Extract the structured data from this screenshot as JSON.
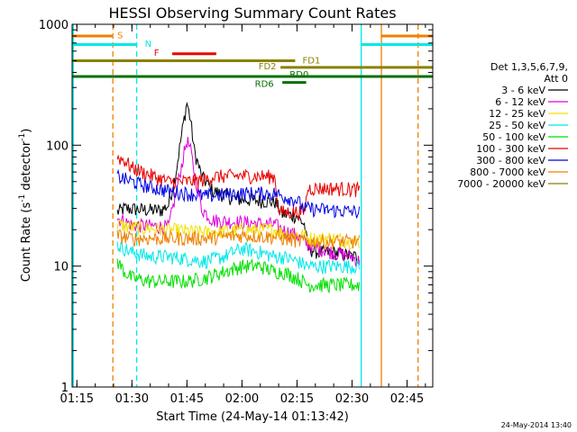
{
  "chart_data": {
    "type": "line",
    "title": "HESSI Observing Summary Count Rates",
    "xlabel": "Start Time (24-May-14 01:13:42)",
    "ylabel_parts": [
      "Count Rate (s",
      "-1",
      " detector",
      "-1",
      ")"
    ],
    "yscale": "log",
    "ylim": [
      1,
      1000
    ],
    "xlim_minutes": [
      73.7,
      172
    ],
    "x_ticks": [
      {
        "t": 75,
        "label": "01:15"
      },
      {
        "t": 90,
        "label": "01:30"
      },
      {
        "t": 105,
        "label": "01:45"
      },
      {
        "t": 120,
        "label": "02:00"
      },
      {
        "t": 135,
        "label": "02:15"
      },
      {
        "t": 150,
        "label": "02:30"
      },
      {
        "t": 165,
        "label": "02:45"
      }
    ],
    "y_ticks": [
      {
        "v": 1,
        "label": "1"
      },
      {
        "v": 10,
        "label": "10"
      },
      {
        "v": 100,
        "label": "100"
      },
      {
        "v": 1000,
        "label": "1000"
      }
    ],
    "legend_title": [
      "Det 1,3,5,6,7,9,",
      "Att 0"
    ],
    "legend_placement": "right",
    "series": [
      {
        "name": "3 - 6 keV",
        "color": "#000000",
        "points": [
          [
            86,
            28
          ],
          [
            88,
            30
          ],
          [
            95,
            29
          ],
          [
            98,
            29
          ],
          [
            100,
            32
          ],
          [
            102,
            60
          ],
          [
            104,
            150
          ],
          [
            105,
            225
          ],
          [
            106,
            160
          ],
          [
            107,
            90
          ],
          [
            109,
            55
          ],
          [
            112,
            42
          ],
          [
            118,
            36
          ],
          [
            124,
            35
          ],
          [
            129,
            34
          ],
          [
            131,
            27
          ],
          [
            135,
            26
          ],
          [
            137,
            22
          ],
          [
            138,
            14
          ],
          [
            141,
            13
          ],
          [
            145,
            13
          ],
          [
            150,
            12
          ],
          [
            152,
            12
          ]
        ]
      },
      {
        "name": "6 - 12 keV",
        "color": "#e000e0",
        "points": [
          [
            86,
            25
          ],
          [
            90,
            22
          ],
          [
            100,
            21
          ],
          [
            102,
            40
          ],
          [
            104,
            80
          ],
          [
            105,
            110
          ],
          [
            106,
            90
          ],
          [
            107,
            60
          ],
          [
            109,
            30
          ],
          [
            112,
            24
          ],
          [
            120,
            23
          ],
          [
            129,
            22
          ],
          [
            131,
            20
          ],
          [
            135,
            18
          ],
          [
            137,
            16
          ],
          [
            138,
            15
          ],
          [
            141,
            14
          ],
          [
            145,
            13
          ],
          [
            150,
            12
          ],
          [
            152,
            11
          ]
        ]
      },
      {
        "name": "12 - 25 keV",
        "color": "#f2e000",
        "points": [
          [
            86,
            22
          ],
          [
            90,
            21
          ],
          [
            100,
            20
          ],
          [
            110,
            19
          ],
          [
            120,
            20
          ],
          [
            129,
            20
          ],
          [
            131,
            19
          ],
          [
            137,
            18
          ],
          [
            138,
            17
          ],
          [
            145,
            17
          ],
          [
            150,
            16
          ],
          [
            152,
            16
          ]
        ]
      },
      {
        "name": "25 - 50 keV",
        "color": "#00e8e8",
        "points": [
          [
            86,
            15
          ],
          [
            90,
            13
          ],
          [
            95,
            12
          ],
          [
            100,
            12
          ],
          [
            105,
            11.5
          ],
          [
            110,
            11
          ],
          [
            115,
            12
          ],
          [
            120,
            14
          ],
          [
            125,
            13
          ],
          [
            129,
            12
          ],
          [
            131,
            12
          ],
          [
            135,
            11
          ],
          [
            138,
            10
          ],
          [
            145,
            10
          ],
          [
            152,
            10
          ]
        ]
      },
      {
        "name": "50 - 100 keV",
        "color": "#00e000",
        "points": [
          [
            86,
            11
          ],
          [
            88,
            9
          ],
          [
            90,
            8
          ],
          [
            95,
            7.5
          ],
          [
            100,
            7.5
          ],
          [
            105,
            7.5
          ],
          [
            110,
            8
          ],
          [
            115,
            9
          ],
          [
            120,
            10
          ],
          [
            125,
            10
          ],
          [
            129,
            9
          ],
          [
            131,
            9
          ],
          [
            135,
            8
          ],
          [
            138,
            7
          ],
          [
            145,
            7
          ],
          [
            152,
            7
          ]
        ]
      },
      {
        "name": "100 - 300 keV",
        "color": "#e80000",
        "points": [
          [
            86,
            80
          ],
          [
            88,
            75
          ],
          [
            90,
            65
          ],
          [
            93,
            60
          ],
          [
            96,
            55
          ],
          [
            100,
            50
          ],
          [
            105,
            50
          ],
          [
            110,
            52
          ],
          [
            112,
            55
          ],
          [
            120,
            56
          ],
          [
            129,
            55
          ],
          [
            130,
            28
          ],
          [
            137,
            28
          ],
          [
            138,
            44
          ],
          [
            145,
            44
          ],
          [
            152,
            43
          ]
        ]
      },
      {
        "name": "300 - 800 keV",
        "color": "#0000e0",
        "points": [
          [
            86,
            55
          ],
          [
            90,
            50
          ],
          [
            95,
            45
          ],
          [
            100,
            42
          ],
          [
            105,
            40
          ],
          [
            110,
            38
          ],
          [
            115,
            39
          ],
          [
            120,
            40
          ],
          [
            129,
            40
          ],
          [
            131,
            38
          ],
          [
            135,
            35
          ],
          [
            137,
            30
          ],
          [
            145,
            29
          ],
          [
            152,
            28
          ]
        ]
      },
      {
        "name": "800 - 7000 keV",
        "color": "#ee8000",
        "points": [
          [
            86,
            18
          ],
          [
            90,
            17
          ],
          [
            100,
            17
          ],
          [
            110,
            17
          ],
          [
            120,
            18
          ],
          [
            129,
            17.5
          ],
          [
            131,
            17
          ],
          [
            137,
            16
          ],
          [
            145,
            16
          ],
          [
            152,
            16
          ]
        ]
      },
      {
        "name": "7000 - 20000 keV",
        "color": "#8a8000",
        "points": []
      }
    ],
    "vertical_markers": [
      {
        "t": 74,
        "color": "#00e8e8",
        "style": "solid"
      },
      {
        "t": 84.8,
        "color": "#ee8000",
        "style": "dashed"
      },
      {
        "t": 91.3,
        "color": "#00e8e8",
        "style": "dashed"
      },
      {
        "t": 152.5,
        "color": "#00e8e8",
        "style": "solid"
      },
      {
        "t": 158,
        "color": "#ee8000",
        "style": "solid"
      },
      {
        "t": 168,
        "color": "#ee8000",
        "style": "dashed"
      }
    ],
    "flag_bars": [
      {
        "label": "S",
        "color": "#ee8000",
        "t0": 73.7,
        "t1": 84.6,
        "v": 800,
        "width": 3,
        "label_t": 86,
        "label_v": 820
      },
      {
        "label": "",
        "color": "#ee8000",
        "t0": 158,
        "t1": 172,
        "v": 800,
        "width": 3,
        "label_t": 0,
        "label_v": 0
      },
      {
        "label": "N",
        "color": "#00e8e8",
        "t0": 73.7,
        "t1": 91.3,
        "v": 680,
        "width": 3,
        "label_t": 93.5,
        "label_v": 700
      },
      {
        "label": "",
        "color": "#00e8e8",
        "t0": 152.5,
        "t1": 172,
        "v": 680,
        "width": 3,
        "label_t": 0,
        "label_v": 0
      },
      {
        "label": "F",
        "color": "#e80000",
        "t0": 101,
        "t1": 113,
        "v": 570,
        "width": 3,
        "label_t": 96,
        "label_v": 590
      },
      {
        "label": "FD1",
        "color": "#8a8000",
        "t0": 73.7,
        "t1": 134.5,
        "v": 500,
        "width": 3,
        "label_t": 136.5,
        "label_v": 510
      },
      {
        "label": "FD2",
        "color": "#8a8000",
        "t0": 130.5,
        "t1": 172,
        "v": 440,
        "width": 3,
        "label_t": 124.5,
        "label_v": 455
      },
      {
        "label": "RD0",
        "color": "#007000",
        "t0": 73.7,
        "t1": 172,
        "v": 370,
        "width": 3,
        "label_t": 133,
        "label_v": 390
      },
      {
        "label": "RD6",
        "color": "#007000",
        "t0": 131,
        "t1": 137.5,
        "v": 330,
        "width": 3,
        "label_t": 123.5,
        "label_v": 325
      }
    ]
  },
  "footer_stamp": "24-May-2014 13:40"
}
